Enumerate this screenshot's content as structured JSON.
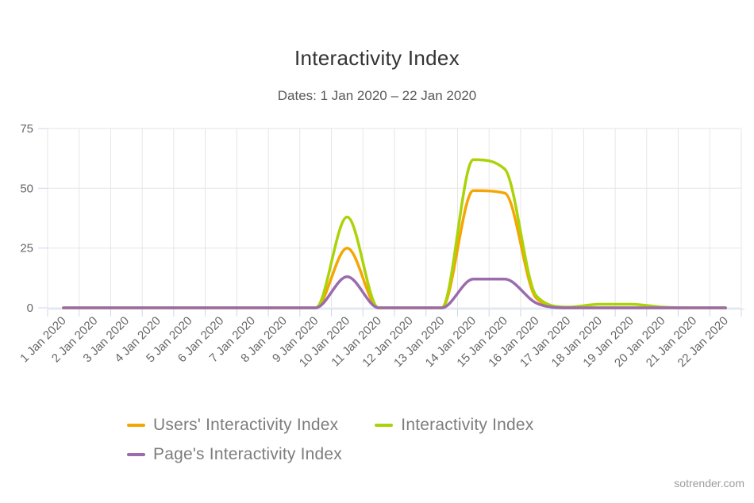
{
  "header": {
    "title": "Interactivity Index",
    "subtitle": "Dates: 1 Jan 2020 – 22 Jan 2020"
  },
  "watermark": "sotrender.com",
  "chart_data": {
    "type": "line",
    "title": "Interactivity Index",
    "subtitle": "Dates: 1 Jan 2020 – 22 Jan 2020",
    "categories": [
      "1 Jan 2020",
      "2 Jan 2020",
      "3 Jan 2020",
      "4 Jan 2020",
      "5 Jan 2020",
      "6 Jan 2020",
      "7 Jan 2020",
      "8 Jan 2020",
      "9 Jan 2020",
      "10 Jan 2020",
      "11 Jan 2020",
      "12 Jan 2020",
      "13 Jan 2020",
      "14 Jan 2020",
      "15 Jan 2020",
      "16 Jan 2020",
      "17 Jan 2020",
      "18 Jan 2020",
      "19 Jan 2020",
      "20 Jan 2020",
      "21 Jan 2020",
      "22 Jan 2020"
    ],
    "yticks": [
      0,
      25,
      50,
      75
    ],
    "ylim": [
      0,
      75
    ],
    "grid": true,
    "legend_position": "bottom",
    "series": [
      {
        "name": "Users' Interactivity Index",
        "color": "#F5A504",
        "values": [
          0,
          0,
          0,
          0,
          0,
          0,
          0,
          0,
          0,
          25,
          0,
          0,
          0,
          49,
          48,
          4,
          0,
          0,
          0,
          0,
          0,
          0
        ]
      },
      {
        "name": "Interactivity Index",
        "color": "#ABD309",
        "values": [
          0,
          0,
          0,
          0,
          0,
          0,
          0,
          0,
          0,
          38,
          0,
          0,
          0,
          62,
          58,
          5,
          0.3,
          1.5,
          1.5,
          0.3,
          0,
          0
        ]
      },
      {
        "name": "Page's Interactivity Index",
        "color": "#9A6BAD",
        "values": [
          0,
          0,
          0,
          0,
          0,
          0,
          0,
          0,
          0,
          13,
          0,
          0,
          0,
          12,
          12,
          2,
          0,
          0,
          0,
          0,
          0,
          0
        ]
      }
    ],
    "axis_colors": {
      "grid": "#e6e6e6",
      "axis_line": "#ccd6eb",
      "tick_text": "#666666"
    }
  }
}
